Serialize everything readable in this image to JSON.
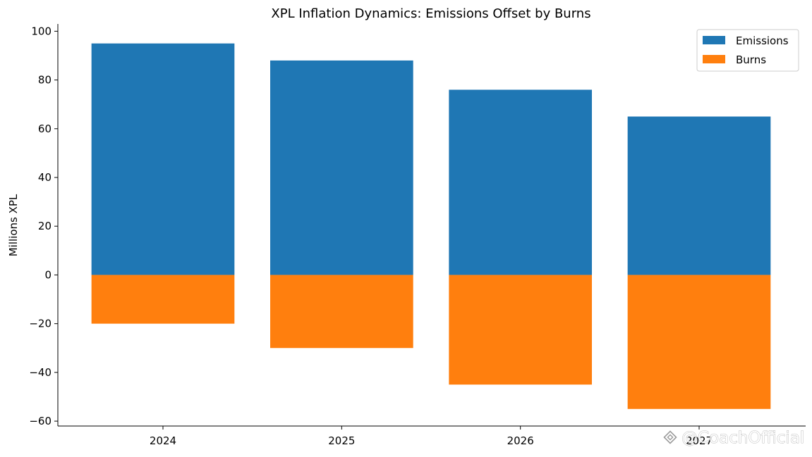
{
  "chart_data": {
    "type": "bar",
    "title": "XPL Inflation Dynamics: Emissions Offset by Burns",
    "xlabel": "",
    "ylabel": "Millions XPL",
    "categories": [
      "2024",
      "2025",
      "2026",
      "2027"
    ],
    "series": [
      {
        "name": "Emissions",
        "color": "#1f77b4",
        "values": [
          95,
          88,
          76,
          65
        ]
      },
      {
        "name": "Burns",
        "color": "#ff7f0e",
        "values": [
          -20,
          -30,
          -45,
          -55
        ]
      }
    ],
    "ylim": [
      -62,
      103
    ],
    "yticks": [
      100,
      80,
      60,
      40,
      20,
      0,
      -20,
      -40,
      -60
    ],
    "ytick_labels": [
      "100",
      "80",
      "60",
      "40",
      "20",
      "0",
      "−20",
      "−40",
      "−60"
    ],
    "grid": false,
    "legend": "top-right"
  },
  "watermark": {
    "text": "@CoachOfficial",
    "icon": "exchange-logo-icon"
  }
}
